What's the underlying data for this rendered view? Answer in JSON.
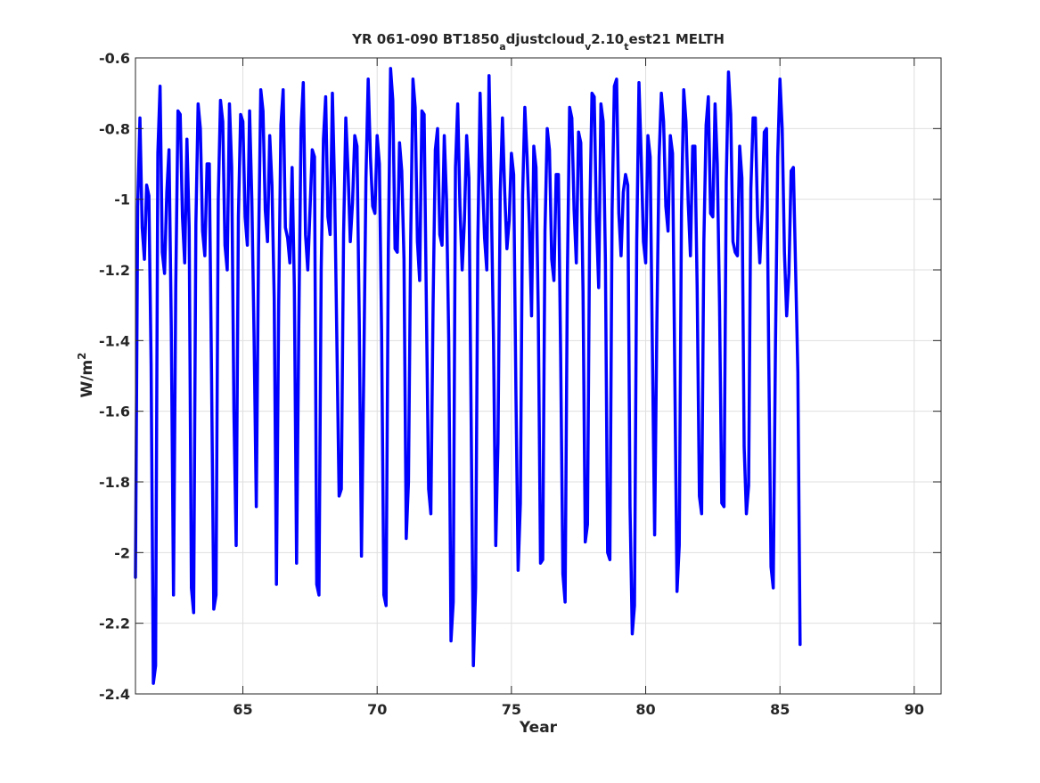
{
  "chart_data": {
    "type": "line",
    "title_parts": {
      "t1": "YR 061-090 BT1850",
      "s1": "a",
      "t2": "djustcloud",
      "s2": "v",
      "t3": "2.10",
      "s3": "t",
      "t4": "est21 MELTH"
    },
    "xlabel": "Year",
    "ylabel_parts": {
      "base": "W/m",
      "sup": "2"
    },
    "xlim": [
      61,
      91
    ],
    "ylim": [
      -2.4,
      -0.6
    ],
    "x_ticks": [
      65,
      70,
      75,
      80,
      85,
      90
    ],
    "x_tick_labels": [
      "65",
      "70",
      "75",
      "80",
      "85",
      "90"
    ],
    "y_ticks": [
      -2.4,
      -2.2,
      -2.0,
      -1.8,
      -1.6,
      -1.4,
      -1.2,
      -1.0,
      -0.8,
      -0.6
    ],
    "y_tick_labels": [
      "-2.4",
      "-2.2",
      "-2",
      "-1.8",
      "-1.6",
      "-1.4",
      "-1.2",
      "-1",
      "-0.8",
      "-0.6"
    ],
    "grid": true,
    "line_color": "#0000ff",
    "x_start": 61.0,
    "x_step": 0.0833333,
    "series": [
      {
        "values": [
          -2.07,
          -1.02,
          -0.77,
          -1.08,
          -1.17,
          -0.96,
          -0.99,
          -1.47,
          -2.37,
          -2.32,
          -0.87,
          -0.68,
          -1.15,
          -1.21,
          -0.98,
          -0.86,
          -1.36,
          -2.12,
          -1.25,
          -0.75,
          -0.76,
          -1.05,
          -1.18,
          -0.83,
          -1.08,
          -2.1,
          -2.17,
          -1.07,
          -0.73,
          -0.8,
          -1.09,
          -1.16,
          -0.9,
          -0.9,
          -1.5,
          -2.16,
          -2.12,
          -1.0,
          -0.72,
          -0.78,
          -1.13,
          -1.2,
          -0.73,
          -0.91,
          -1.6,
          -1.98,
          -1.05,
          -0.76,
          -0.78,
          -1.05,
          -1.13,
          -0.75,
          -1.0,
          -1.39,
          -1.87,
          -1.14,
          -0.69,
          -0.75,
          -1.03,
          -1.12,
          -0.82,
          -0.96,
          -1.28,
          -2.09,
          -1.3,
          -0.79,
          -0.69,
          -1.08,
          -1.11,
          -1.18,
          -0.91,
          -1.25,
          -2.03,
          -1.35,
          -0.8,
          -0.67,
          -1.1,
          -1.2,
          -1.03,
          -0.86,
          -0.88,
          -2.09,
          -2.12,
          -1.2,
          -0.83,
          -0.71,
          -1.05,
          -1.1,
          -0.7,
          -0.97,
          -1.4,
          -1.84,
          -1.82,
          -1.1,
          -0.77,
          -0.92,
          -1.12,
          -1.01,
          -0.82,
          -0.85,
          -1.34,
          -2.01,
          -1.5,
          -0.94,
          -0.66,
          -0.88,
          -1.02,
          -1.04,
          -0.82,
          -0.9,
          -1.38,
          -2.12,
          -2.15,
          -1.14,
          -0.63,
          -0.72,
          -1.14,
          -1.15,
          -0.84,
          -0.92,
          -1.17,
          -1.96,
          -1.8,
          -1.11,
          -0.66,
          -0.74,
          -1.12,
          -1.23,
          -0.75,
          -0.76,
          -1.3,
          -1.82,
          -1.89,
          -1.3,
          -0.86,
          -0.8,
          -1.1,
          -1.13,
          -0.82,
          -1.0,
          -1.4,
          -2.25,
          -2.14,
          -0.91,
          -0.73,
          -1.02,
          -1.2,
          -1.06,
          -0.82,
          -0.94,
          -1.62,
          -2.32,
          -2.1,
          -1.12,
          -0.7,
          -0.93,
          -1.11,
          -1.2,
          -0.65,
          -1.0,
          -1.4,
          -1.98,
          -1.69,
          -0.98,
          -0.77,
          -0.98,
          -1.14,
          -1.06,
          -0.87,
          -0.93,
          -1.54,
          -2.05,
          -1.86,
          -0.99,
          -0.74,
          -0.88,
          -1.07,
          -1.33,
          -0.85,
          -0.91,
          -1.32,
          -2.03,
          -2.02,
          -1.09,
          -0.8,
          -0.86,
          -1.17,
          -1.23,
          -0.93,
          -0.93,
          -1.44,
          -2.06,
          -2.14,
          -1.22,
          -0.74,
          -0.77,
          -1.03,
          -1.18,
          -0.81,
          -0.84,
          -1.26,
          -1.97,
          -1.92,
          -1.05,
          -0.7,
          -0.71,
          -1.06,
          -1.25,
          -0.73,
          -0.78,
          -1.17,
          -2.0,
          -2.02,
          -1.03,
          -0.68,
          -0.66,
          -1.04,
          -1.16,
          -0.98,
          -0.93,
          -0.96,
          -1.87,
          -2.23,
          -2.15,
          -1.12,
          -0.67,
          -0.88,
          -1.12,
          -1.18,
          -0.82,
          -0.88,
          -1.43,
          -1.95,
          -1.35,
          -0.88,
          -0.7,
          -0.78,
          -1.02,
          -1.09,
          -0.82,
          -0.87,
          -1.49,
          -2.11,
          -1.98,
          -1.03,
          -0.69,
          -0.78,
          -1.01,
          -1.16,
          -0.85,
          -0.85,
          -1.25,
          -1.84,
          -1.89,
          -1.12,
          -0.79,
          -0.71,
          -1.04,
          -1.05,
          -0.73,
          -0.9,
          -1.3,
          -1.86,
          -1.87,
          -0.95,
          -0.64,
          -0.76,
          -1.12,
          -1.15,
          -1.16,
          -0.85,
          -0.94,
          -1.7,
          -1.89,
          -1.81,
          -0.97,
          -0.77,
          -0.77,
          -1.05,
          -1.18,
          -1.03,
          -0.81,
          -0.8,
          -1.45,
          -2.04,
          -2.1,
          -1.41,
          -0.88,
          -0.66,
          -0.8,
          -1.15,
          -1.33,
          -1.21,
          -0.92,
          -0.91,
          -1.2,
          -1.49,
          -2.26
        ]
      }
    ]
  }
}
